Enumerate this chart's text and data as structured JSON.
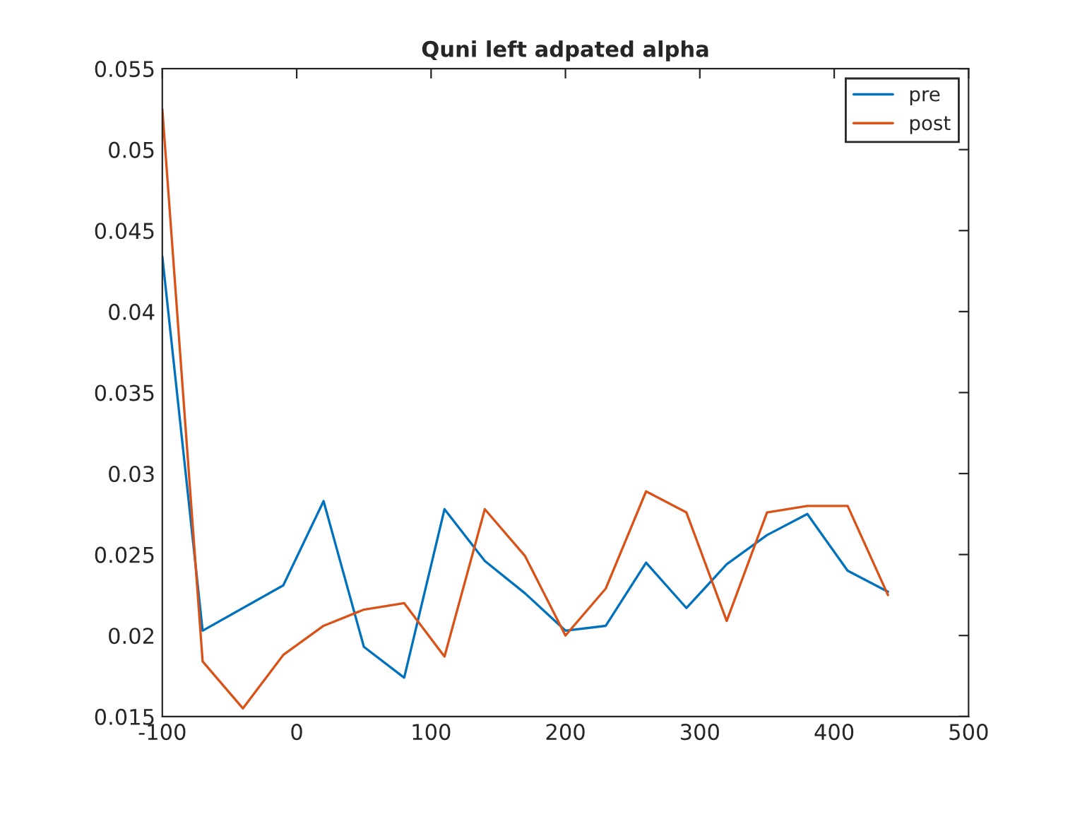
{
  "chart_data": {
    "type": "line",
    "title": "Quni left adpated alpha",
    "x": [
      -100,
      -70,
      -40,
      -10,
      20,
      50,
      80,
      110,
      140,
      170,
      200,
      230,
      260,
      290,
      320,
      350,
      380,
      410,
      440
    ],
    "series": [
      {
        "name": "pre",
        "color": "#0072bd",
        "x": [
          -100,
          -70,
          -10,
          20,
          50,
          80,
          110,
          140,
          170,
          200,
          230,
          260,
          290,
          320,
          350,
          380,
          410,
          440
        ],
        "values": [
          0.0434,
          0.0203,
          0.0231,
          0.0283,
          0.0193,
          0.0174,
          0.0278,
          0.0246,
          0.0226,
          0.0203,
          0.0206,
          0.0245,
          0.0217,
          0.0244,
          0.0262,
          0.0275,
          0.024,
          0.0227
        ]
      },
      {
        "name": "post",
        "color": "#d95319",
        "values": [
          0.0525,
          0.0184,
          0.0155,
          0.0188,
          0.0206,
          0.0216,
          0.022,
          0.0187,
          0.0278,
          0.0249,
          0.02,
          0.0229,
          0.0289,
          0.0276,
          0.0209,
          0.0276,
          0.028,
          0.028,
          0.0225
        ]
      }
    ],
    "xlim": [
      -100,
      500
    ],
    "xticks": [
      -100,
      0,
      100,
      200,
      300,
      400,
      500
    ],
    "ylim": [
      0.015,
      0.055
    ],
    "yticks": [
      0.015,
      0.02,
      0.025,
      0.03,
      0.035,
      0.04,
      0.045,
      0.05,
      0.055
    ],
    "grid": false,
    "legend": "top right",
    "marker": "none",
    "line_style": "solid"
  }
}
